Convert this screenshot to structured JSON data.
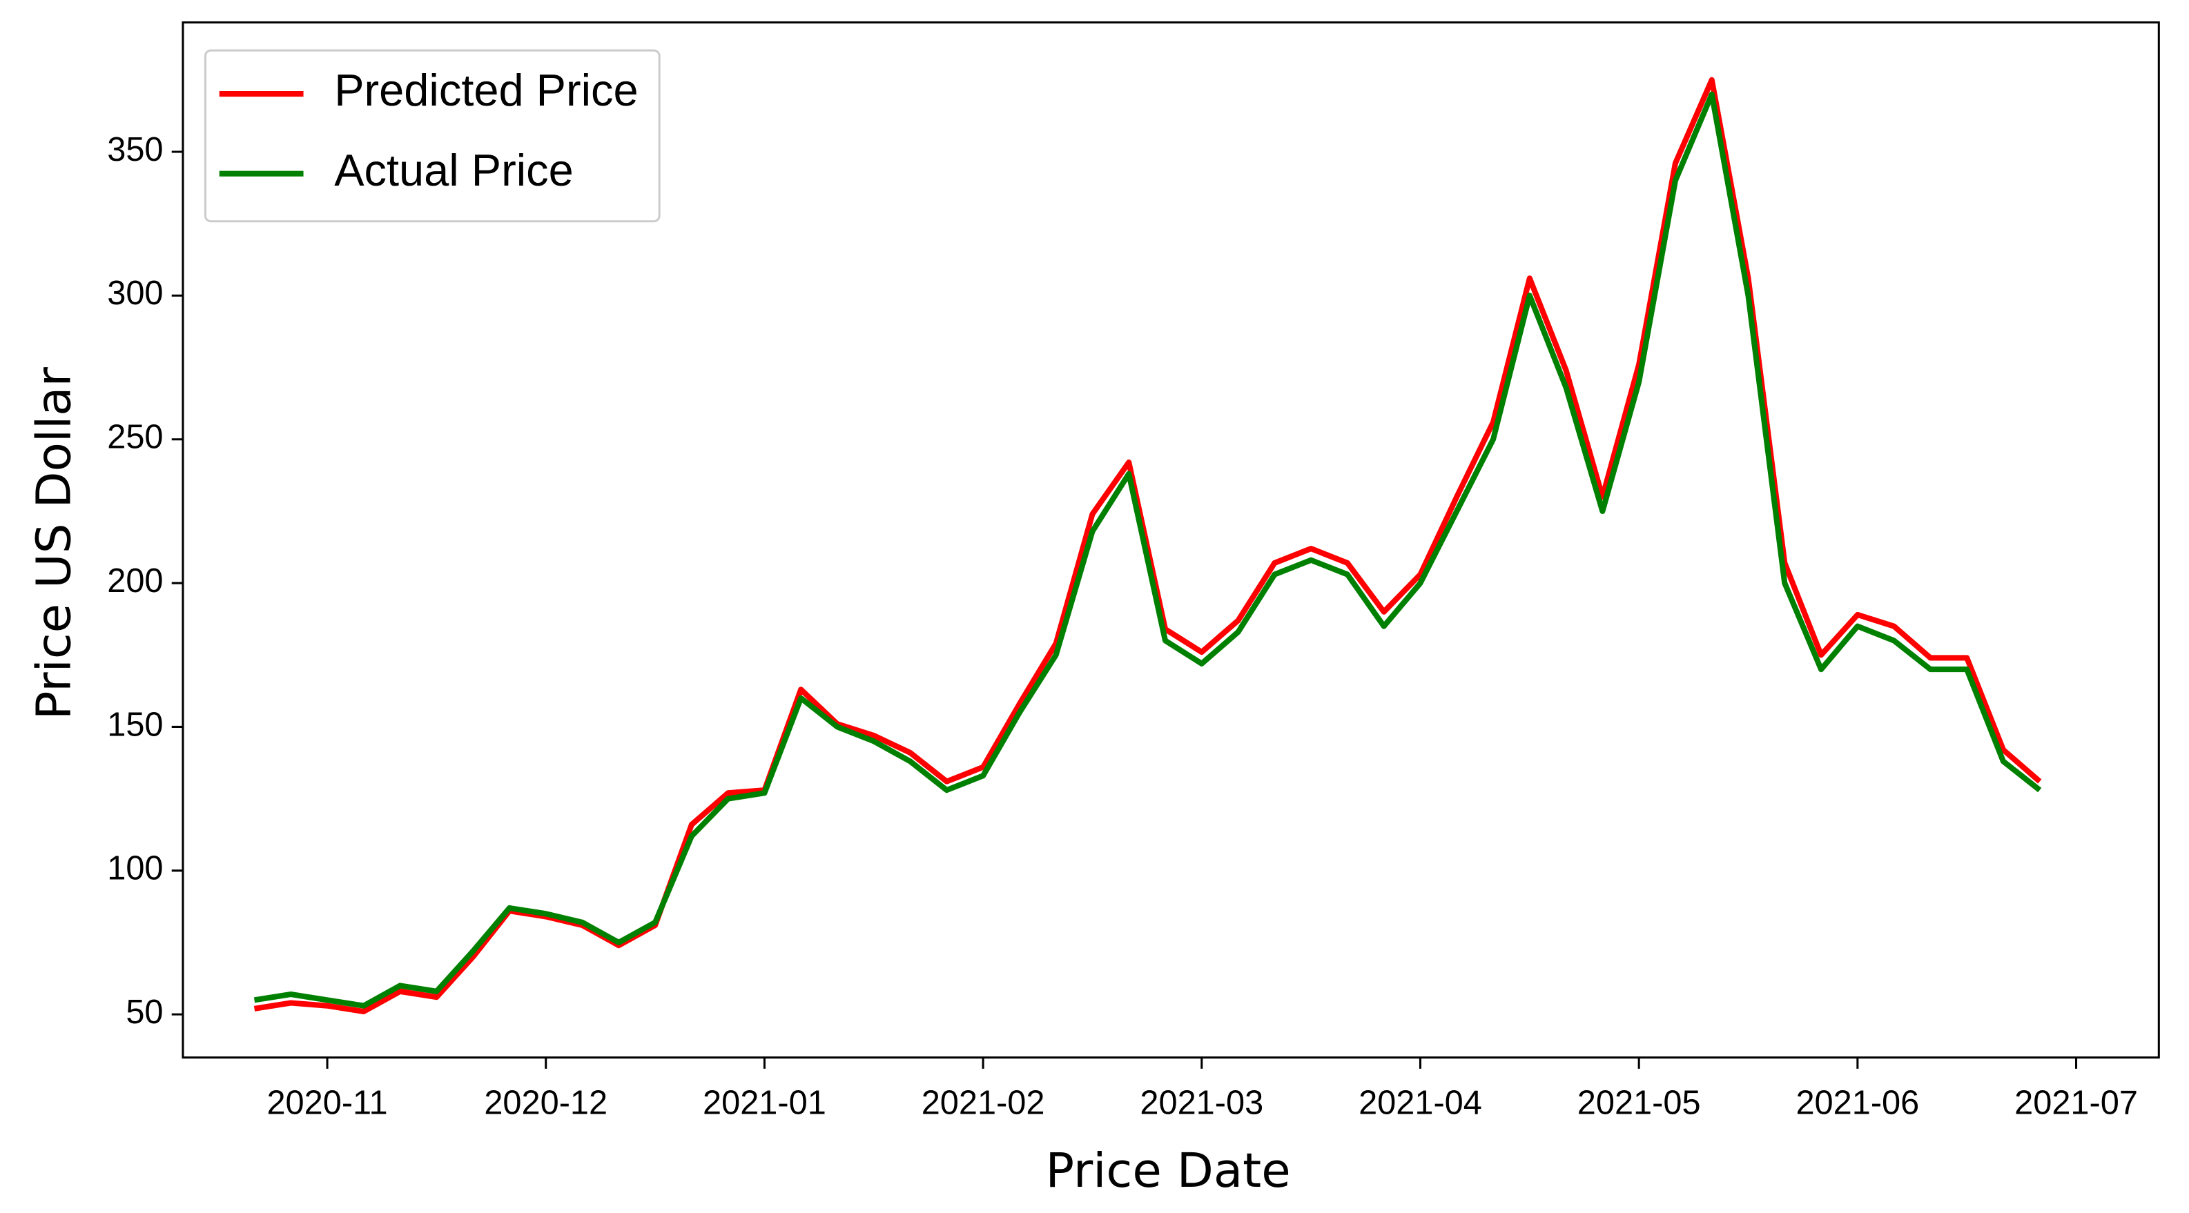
{
  "chart_data": {
    "type": "line",
    "xlabel": "Price Date",
    "ylabel": "Price US Dollar",
    "categories": [
      null,
      null,
      "2020-11",
      null,
      null,
      null,
      null,
      null,
      "2020-12",
      null,
      null,
      null,
      null,
      null,
      "2021-01",
      null,
      null,
      null,
      null,
      null,
      "2021-02",
      null,
      null,
      null,
      null,
      null,
      "2021-03",
      null,
      null,
      null,
      null,
      null,
      "2021-04",
      null,
      null,
      null,
      null,
      null,
      "2021-05",
      null,
      null,
      null,
      null,
      null,
      "2021-06",
      null,
      null,
      null,
      null,
      null,
      "2021-07"
    ],
    "series": [
      {
        "name": "Predicted Price",
        "color": "#ff0000",
        "values": [
          52,
          54,
          53,
          51,
          58,
          56,
          70,
          86,
          84,
          81,
          74,
          81,
          116,
          127,
          128,
          163,
          151,
          147,
          141,
          131,
          136,
          158,
          179,
          224,
          242,
          184,
          176,
          187,
          207,
          212,
          207,
          190,
          203,
          230,
          256,
          306,
          274,
          230,
          276,
          346,
          375,
          306,
          207,
          175,
          189,
          185,
          174,
          174,
          142,
          131,
          null
        ]
      },
      {
        "name": "Actual Price",
        "color": "#008000",
        "values": [
          55,
          57,
          55,
          53,
          60,
          58,
          72,
          87,
          85,
          82,
          75,
          82,
          112,
          125,
          127,
          160,
          150,
          145,
          138,
          128,
          133,
          155,
          175,
          218,
          238,
          180,
          172,
          183,
          203,
          208,
          203,
          185,
          200,
          225,
          250,
          300,
          268,
          225,
          270,
          340,
          370,
          300,
          200,
          170,
          185,
          180,
          170,
          170,
          138,
          128,
          null
        ]
      }
    ],
    "ylim": [
      35,
      395
    ],
    "yticks": [
      50,
      100,
      150,
      200,
      250,
      300,
      350
    ],
    "legend": "upper left"
  }
}
